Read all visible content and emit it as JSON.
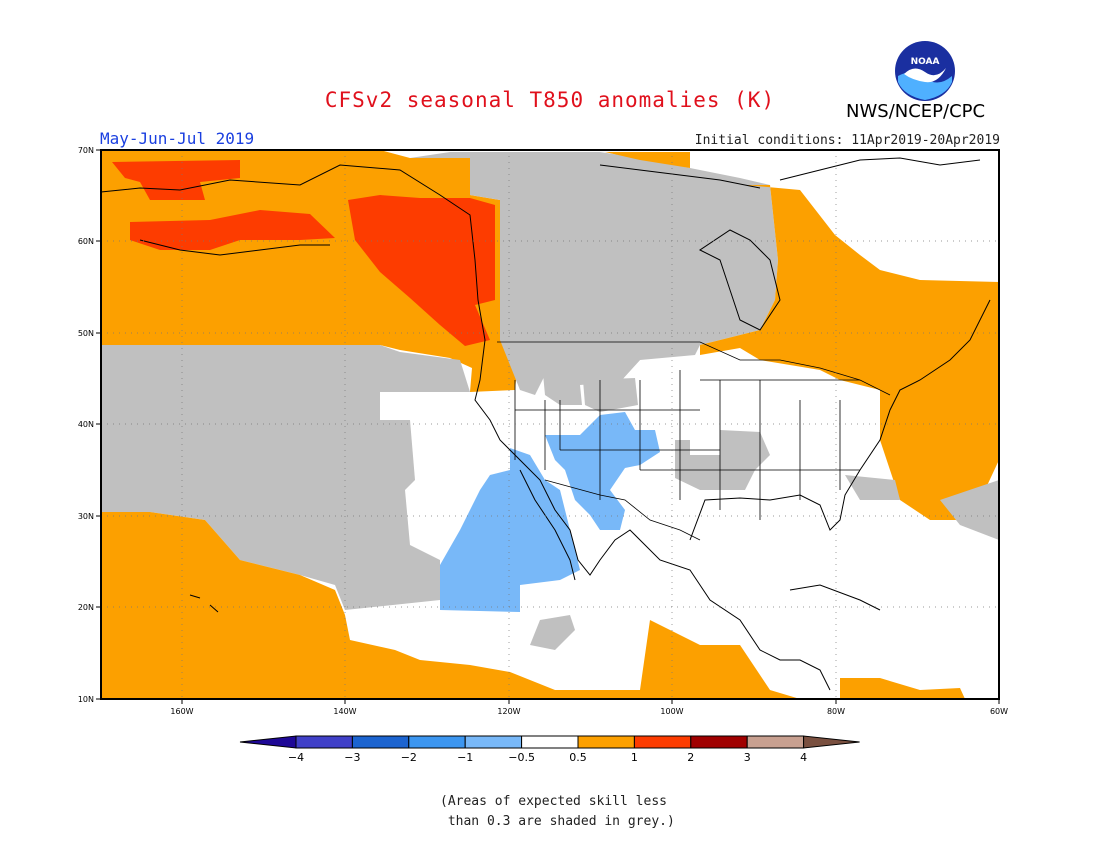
{
  "title": "CFSv2 seasonal T850 anomalies (K)",
  "agency": "NWS/NCEP/CPC",
  "logo_text": "NOAA",
  "season": "May-Jun-Jul 2019",
  "initial_conditions": "Initial conditions: 11Apr2019-20Apr2019",
  "caption": "(Areas of expected skill less\n than 0.3 are shaded in grey.)",
  "map": {
    "lat_labels": [
      "70N",
      "60N",
      "50N",
      "40N",
      "30N",
      "20N",
      "10N"
    ],
    "lon_labels": [
      "160W",
      "140W",
      "120W",
      "100W",
      "80W",
      "60W"
    ],
    "lat_range": [
      10,
      70
    ],
    "lon_range": [
      -170,
      -60
    ]
  },
  "colors": {
    "no_skill_grey": "#c0c0c0",
    "neutral": "#ffffff",
    "anom_pos_0_5_1": "#fca000",
    "anom_pos_1_2": "#fd3c00",
    "anom_pos_2_3": "#a00000",
    "anom_pos_3_4": "#c8a090",
    "anom_pos_gt4": "#7a5040",
    "anom_neg_0_5_1": "#78b8f8",
    "anom_neg_1_2": "#3c96f0",
    "anom_neg_2_3": "#1c64d0",
    "anom_neg_3_4": "#4040c8",
    "anom_neg_lt4": "#1e0896"
  },
  "colorbar": {
    "labels": [
      "−4",
      "−3",
      "−2",
      "−1",
      "−0.5",
      "0.5",
      "1",
      "2",
      "3",
      "4"
    ],
    "colors": [
      "#4040c8",
      "#1c64d0",
      "#3c96f0",
      "#78b8f8",
      "#ffffff",
      "#fca000",
      "#fd3c00",
      "#a00000",
      "#c8a090"
    ],
    "low_end_color": "#1e0896",
    "high_end_color": "#7a5040"
  }
}
